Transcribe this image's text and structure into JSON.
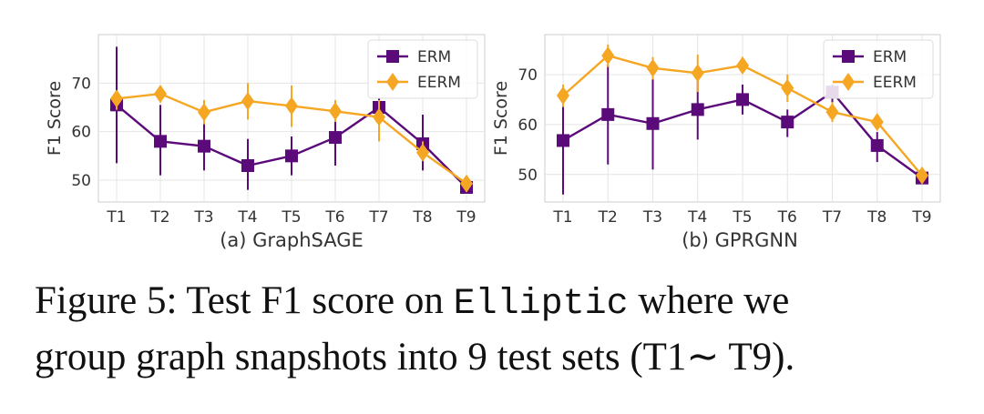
{
  "chart_data": [
    {
      "type": "line",
      "title": "(a) GraphSAGE",
      "xlabel": "",
      "ylabel": "F1 Score",
      "categories": [
        "T1",
        "T2",
        "T3",
        "T4",
        "T5",
        "T6",
        "T7",
        "T8",
        "T9"
      ],
      "ylim": [
        45.5,
        80
      ],
      "yticks": [
        50,
        60,
        70
      ],
      "grid": true,
      "legend": "top-right",
      "series": [
        {
          "name": "ERM",
          "color": "#5b0a7a",
          "marker": "square",
          "values": [
            65.5,
            58.0,
            57.0,
            53.0,
            55.0,
            58.8,
            65.0,
            57.5,
            48.5
          ],
          "err_low": [
            53.5,
            51.0,
            52.0,
            48.0,
            51.0,
            53.0,
            62.0,
            52.0,
            47.5
          ],
          "err_high": [
            77.5,
            65.5,
            62.0,
            58.5,
            59.0,
            64.0,
            67.0,
            63.5,
            49.5
          ]
        },
        {
          "name": "EERM",
          "color": "#f5a623",
          "marker": "diamond",
          "values": [
            66.8,
            67.8,
            64.0,
            66.3,
            65.3,
            64.2,
            63.0,
            55.7,
            49.3
          ],
          "err_low": [
            64.5,
            66.0,
            61.5,
            62.5,
            61.0,
            62.0,
            58.0,
            54.0,
            48.5
          ],
          "err_high": [
            68.5,
            69.5,
            66.5,
            70.0,
            69.5,
            66.5,
            66.5,
            58.0,
            50.5
          ]
        }
      ]
    },
    {
      "type": "line",
      "title": "(b) GPRGNN",
      "xlabel": "",
      "ylabel": "F1 Score",
      "categories": [
        "T1",
        "T2",
        "T3",
        "T4",
        "T5",
        "T6",
        "T7",
        "T8",
        "T9"
      ],
      "ylim": [
        44.5,
        78
      ],
      "yticks": [
        50,
        60,
        70
      ],
      "grid": true,
      "legend": "top-right",
      "series": [
        {
          "name": "ERM",
          "color": "#5b0a7a",
          "marker": "square",
          "values": [
            56.8,
            62.0,
            60.2,
            63.0,
            65.0,
            60.5,
            66.5,
            55.8,
            49.3
          ],
          "err_low": [
            46.0,
            52.0,
            51.0,
            57.0,
            62.0,
            57.5,
            64.0,
            52.5,
            48.5
          ],
          "err_high": [
            67.0,
            72.0,
            69.5,
            69.0,
            68.0,
            63.0,
            68.0,
            58.5,
            50.0
          ]
        },
        {
          "name": "EERM",
          "color": "#f5a623",
          "marker": "diamond",
          "values": [
            65.8,
            73.8,
            71.3,
            70.3,
            71.8,
            67.3,
            62.5,
            60.5,
            49.8
          ],
          "err_low": [
            63.5,
            71.5,
            69.0,
            66.5,
            70.5,
            64.5,
            60.5,
            59.5,
            49.0
          ],
          "err_high": [
            68.0,
            76.0,
            73.5,
            74.0,
            73.5,
            70.0,
            64.5,
            61.5,
            50.5
          ]
        }
      ]
    }
  ],
  "caption": {
    "line1_a": "Figure 5: Test F1 score on ",
    "line1_mono": "Elliptic",
    "line1_b": " where we",
    "line2": "group graph snapshots into 9 test sets (T1∼ T9)."
  }
}
